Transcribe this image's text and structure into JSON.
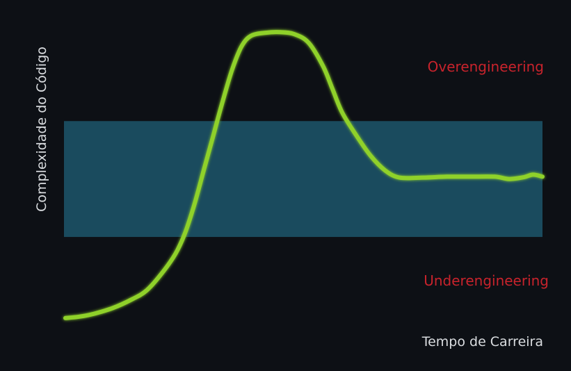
{
  "chart_data": {
    "type": "line",
    "title": "",
    "xlabel": "Tempo de Carreira",
    "ylabel": "Complexidade do Código",
    "xlim": [
      0,
      100
    ],
    "ylim": [
      0,
      100
    ],
    "grid": false,
    "legend": "none",
    "band": {
      "y_min": 29,
      "y_max": 69,
      "color": "#1a4b5e"
    },
    "annotations": [
      {
        "text": "Overengineering",
        "region": "above-band",
        "color": "#c8232c"
      },
      {
        "text": "Underengineering",
        "region": "below-band",
        "color": "#c8232c"
      }
    ],
    "series": [
      {
        "color": "#8fd12c",
        "points": [
          [
            0,
            1
          ],
          [
            3,
            1.5
          ],
          [
            6,
            2.5
          ],
          [
            10,
            4.5
          ],
          [
            14,
            7.5
          ],
          [
            17,
            10.5
          ],
          [
            20,
            16
          ],
          [
            23,
            23
          ],
          [
            25,
            30
          ],
          [
            27,
            40
          ],
          [
            29,
            52
          ],
          [
            31,
            64
          ],
          [
            33,
            76
          ],
          [
            35,
            87
          ],
          [
            37,
            95
          ],
          [
            39,
            98.5
          ],
          [
            42,
            99.5
          ],
          [
            45,
            99.7
          ],
          [
            48,
            99
          ],
          [
            51,
            96
          ],
          [
            54,
            88
          ],
          [
            56,
            80
          ],
          [
            58,
            72
          ],
          [
            61,
            64
          ],
          [
            64,
            57
          ],
          [
            67,
            52
          ],
          [
            70,
            49.5
          ],
          [
            75,
            49.5
          ],
          [
            80,
            49.8
          ],
          [
            85,
            49.8
          ],
          [
            90,
            49.8
          ],
          [
            93,
            49
          ],
          [
            96,
            49.6
          ],
          [
            98,
            50.5
          ],
          [
            100,
            49.8
          ]
        ]
      }
    ]
  },
  "colors": {
    "background": "#0d1015",
    "axis": "#eceef0",
    "axis_text": "#dadde0",
    "band": "#1a4b5e",
    "line": "#8fd12c",
    "annotation": "#c8232c"
  }
}
